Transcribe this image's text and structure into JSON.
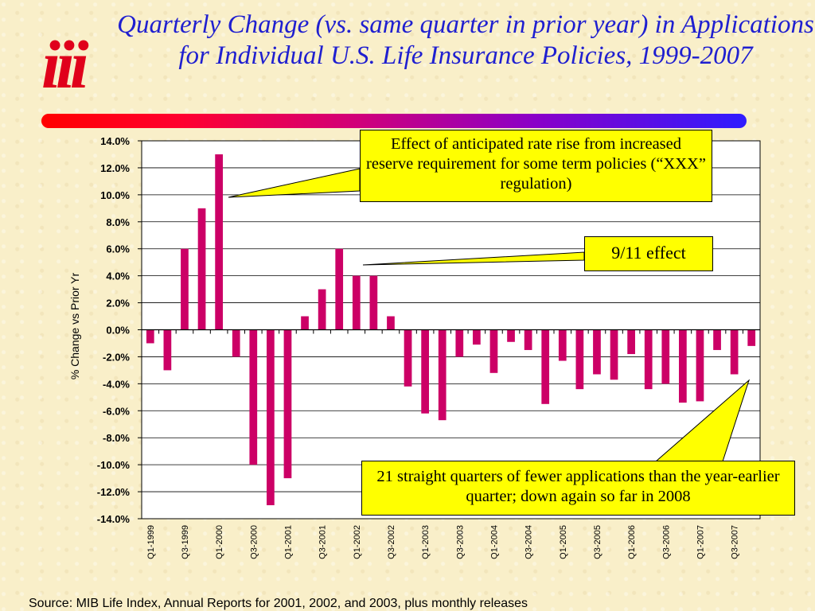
{
  "slide": {
    "title": "Quarterly Change (vs. same quarter in prior year) in Applications for Individual U.S. Life Insurance Policies, 1999-2007",
    "logo_text": "iii",
    "source": "Source: MIB Life Index, Annual Reports for 2001, 2002, and 2003, plus monthly releases",
    "colors": {
      "title": "#1f1fd0",
      "bar": "#cc0066",
      "callout": "#ffff00",
      "logo": "#e0001b"
    }
  },
  "chart_data": {
    "type": "bar",
    "ylabel": "% Change vs Prior Yr",
    "xlabel": "",
    "ylim": [
      -14,
      14
    ],
    "yticks": [
      14,
      12,
      10,
      8,
      6,
      4,
      2,
      0,
      -2,
      -4,
      -6,
      -8,
      -10,
      -12,
      -14
    ],
    "ytick_labels": [
      "14.0%",
      "12.0%",
      "10.0%",
      "8.0%",
      "6.0%",
      "4.0%",
      "2.0%",
      "0.0%",
      "-2.0%",
      "-4.0%",
      "-6.0%",
      "-8.0%",
      "-10.0%",
      "-12.0%",
      "-14.0%"
    ],
    "categories": [
      "Q1-1999",
      "Q2-1999",
      "Q3-1999",
      "Q4-1999",
      "Q1-2000",
      "Q2-2000",
      "Q3-2000",
      "Q4-2000",
      "Q1-2001",
      "Q2-2001",
      "Q3-2001",
      "Q4-2001",
      "Q1-2002",
      "Q2-2002",
      "Q3-2002",
      "Q4-2002",
      "Q1-2003",
      "Q2-2003",
      "Q3-2003",
      "Q4-2003",
      "Q1-2004",
      "Q2-2004",
      "Q3-2004",
      "Q4-2004",
      "Q1-2005",
      "Q2-2005",
      "Q3-2005",
      "Q4-2005",
      "Q1-2006",
      "Q2-2006",
      "Q3-2006",
      "Q4-2006",
      "Q1-2007",
      "Q2-2007",
      "Q3-2007",
      "Q4-2007"
    ],
    "xtick_labels": [
      "Q1-1999",
      "Q3-1999",
      "Q1-2000",
      "Q3-2000",
      "Q1-2001",
      "Q3-2001",
      "Q1-2002",
      "Q3-2002",
      "Q1-2003",
      "Q3-2003",
      "Q1-2004",
      "Q3-2004",
      "Q1-2005",
      "Q3-2005",
      "Q1-2006",
      "Q3-2006",
      "Q1-2007",
      "Q3-2007"
    ],
    "values": [
      -1,
      -3,
      6,
      9,
      13,
      -2,
      -10,
      -13,
      -11,
      1,
      3,
      6,
      4,
      4,
      1,
      -4.2,
      -6.2,
      -6.7,
      -2,
      -1.1,
      -3.2,
      -0.9,
      -1.5,
      -5.5,
      -2.3,
      -4.4,
      -3.3,
      -3.7,
      -1.8,
      -4.4,
      -4,
      -5.4,
      -5.3,
      -1.5,
      -3.3,
      -1.2
    ],
    "grid": true,
    "legend": "none",
    "annotations": [
      {
        "id": "xxx",
        "text": "Effect of anticipated rate rise from increased reserve requirement for some term policies (“XXX” regulation)",
        "points_to": "Q1-2000"
      },
      {
        "id": "911",
        "text": "9/11 effect",
        "points_to": "Q4-2001"
      },
      {
        "id": "21q",
        "text": "21 straight quarters of fewer applications than the year-earlier quarter; down again so far in 2008",
        "points_to": "Q4-2007"
      }
    ]
  }
}
